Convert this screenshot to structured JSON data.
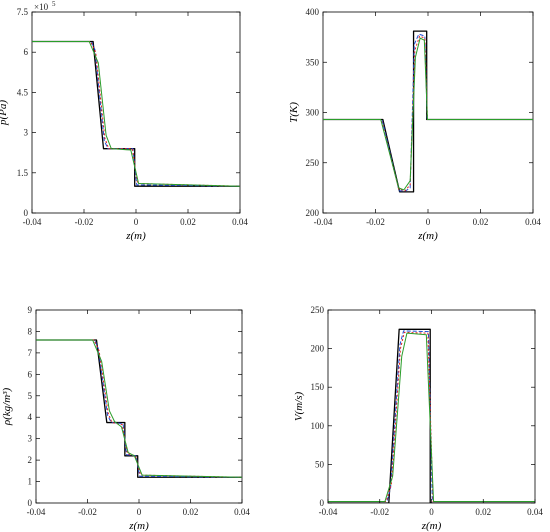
{
  "chart_data": [
    {
      "type": "line",
      "xlabel": "z(m)",
      "ylabel": "p(Pa)",
      "y_exponent": "×10",
      "y_exponent_power": "5",
      "xlim": [
        -0.04,
        0.04
      ],
      "ylim": [
        0,
        7.5
      ],
      "xticks": [
        -0.04,
        -0.02,
        0,
        0.02,
        0.04
      ],
      "xticklabels": [
        "-0.04",
        "-0.02",
        "0",
        "0.02",
        "0.04"
      ],
      "yticks": [
        0,
        1.5,
        3,
        4.5,
        6,
        7.5
      ],
      "yticklabels": [
        "0",
        "1.5",
        "3",
        "4.5",
        "6",
        "7.5"
      ],
      "series": [
        {
          "color": "#000000",
          "dash": "solid",
          "width": 1.3,
          "x": [
            -0.04,
            -0.0165,
            -0.0165,
            -0.0125,
            -0.0118,
            -0.0005,
            -0.0005,
            0.04
          ],
          "y": [
            6.4,
            6.4,
            6.4,
            2.4,
            2.4,
            2.4,
            1.0,
            1.0
          ]
        },
        {
          "color": "#1f4fd8",
          "dash": "4,2",
          "width": 1.0,
          "x": [
            -0.04,
            -0.0172,
            -0.0158,
            -0.0122,
            -0.0108,
            -0.0012,
            0.0003,
            0.04
          ],
          "y": [
            6.4,
            6.4,
            6.1,
            2.7,
            2.4,
            2.4,
            1.05,
            1.0
          ]
        },
        {
          "color": "#e02020",
          "dash": "2,2",
          "width": 1.0,
          "x": [
            -0.04,
            -0.0175,
            -0.0155,
            -0.012,
            -0.0105,
            -0.0014,
            0.0006,
            0.04
          ],
          "y": [
            6.4,
            6.4,
            6.0,
            2.8,
            2.4,
            2.4,
            1.1,
            1.0
          ]
        },
        {
          "color": "#2a9d2a",
          "dash": "solid",
          "width": 1.0,
          "x": [
            -0.04,
            -0.018,
            -0.0145,
            -0.0115,
            -0.0095,
            -0.002,
            0.001,
            0.04
          ],
          "y": [
            6.4,
            6.4,
            5.6,
            2.9,
            2.4,
            2.35,
            1.1,
            1.0
          ]
        }
      ]
    },
    {
      "type": "line",
      "xlabel": "z(m)",
      "ylabel": "T(K)",
      "xlim": [
        -0.04,
        0.04
      ],
      "ylim": [
        200,
        400
      ],
      "xticks": [
        -0.04,
        -0.02,
        0,
        0.02,
        0.04
      ],
      "xticklabels": [
        "-0.04",
        "-0.02",
        "0",
        "0.02",
        "0.04"
      ],
      "yticks": [
        200,
        250,
        300,
        350,
        400
      ],
      "yticklabels": [
        "200",
        "250",
        "300",
        "350",
        "400"
      ],
      "series": [
        {
          "color": "#000000",
          "dash": "solid",
          "width": 1.3,
          "x": [
            -0.04,
            -0.0172,
            -0.0108,
            -0.0085,
            -0.0085,
            -0.0055,
            -0.0055,
            -0.0005,
            -0.0005,
            0.04
          ],
          "y": [
            293,
            293,
            221,
            221,
            221,
            221,
            381,
            381,
            293,
            293
          ]
        },
        {
          "color": "#1f4fd8",
          "dash": "4,2",
          "width": 1.0,
          "x": [
            -0.04,
            -0.0175,
            -0.011,
            -0.0085,
            -0.0068,
            -0.0052,
            -0.0035,
            -0.0012,
            -0.0003,
            0.04
          ],
          "y": [
            293,
            293,
            222,
            222,
            225,
            368,
            378,
            376,
            293,
            293
          ]
        },
        {
          "color": "#e02020",
          "dash": "2,2",
          "width": 1.0,
          "x": [
            -0.04,
            -0.0178,
            -0.0112,
            -0.0088,
            -0.0068,
            -0.005,
            -0.0032,
            -0.0012,
            -0.0002,
            0.04
          ],
          "y": [
            293,
            293,
            224,
            222,
            228,
            362,
            376,
            374,
            293,
            293
          ]
        },
        {
          "color": "#2a9d2a",
          "dash": "solid",
          "width": 1.0,
          "x": [
            -0.04,
            -0.018,
            -0.0112,
            -0.0092,
            -0.0068,
            -0.0048,
            -0.003,
            -0.0014,
            -0.0002,
            0.04
          ],
          "y": [
            293,
            293,
            225,
            223,
            232,
            355,
            374,
            372,
            293,
            293
          ]
        }
      ]
    },
    {
      "type": "line",
      "xlabel": "z(m)",
      "ylabel": "ρ(kg/m³)",
      "xlim": [
        -0.04,
        0.04
      ],
      "ylim": [
        0,
        9
      ],
      "xticks": [
        -0.04,
        -0.02,
        0,
        0.02,
        0.04
      ],
      "xticklabels": [
        "-0.04",
        "-0.02",
        "0",
        "0.02",
        "0.04"
      ],
      "yticks": [
        0,
        1,
        2,
        3,
        4,
        5,
        6,
        7,
        8,
        9
      ],
      "yticklabels": [
        "0",
        "1",
        "2",
        "3",
        "4",
        "5",
        "6",
        "7",
        "8",
        "9"
      ],
      "series": [
        {
          "color": "#000000",
          "dash": "solid",
          "width": 1.3,
          "x": [
            -0.04,
            -0.0165,
            -0.0125,
            -0.0118,
            -0.0055,
            -0.0055,
            -0.0005,
            -0.0005,
            0.04
          ],
          "y": [
            7.6,
            7.6,
            3.75,
            3.75,
            3.75,
            2.2,
            2.2,
            1.2,
            1.2
          ]
        },
        {
          "color": "#1f4fd8",
          "dash": "4,2",
          "width": 1.0,
          "x": [
            -0.04,
            -0.0172,
            -0.0158,
            -0.0122,
            -0.0108,
            -0.0062,
            -0.0048,
            -0.0012,
            0.0003,
            0.04
          ],
          "y": [
            7.6,
            7.6,
            7.2,
            4.1,
            3.75,
            3.7,
            2.25,
            2.2,
            1.25,
            1.2
          ]
        },
        {
          "color": "#e02020",
          "dash": "2,2",
          "width": 1.0,
          "x": [
            -0.04,
            -0.0175,
            -0.0155,
            -0.012,
            -0.0105,
            -0.0065,
            -0.0045,
            -0.0014,
            0.0006,
            0.04
          ],
          "y": [
            7.6,
            7.6,
            7.1,
            4.2,
            3.75,
            3.65,
            2.3,
            2.2,
            1.3,
            1.2
          ]
        },
        {
          "color": "#2a9d2a",
          "dash": "solid",
          "width": 1.0,
          "x": [
            -0.04,
            -0.018,
            -0.0145,
            -0.0115,
            -0.0095,
            -0.0068,
            -0.0042,
            -0.0018,
            0.0012,
            0.04
          ],
          "y": [
            7.6,
            7.6,
            6.6,
            4.3,
            3.8,
            3.55,
            2.35,
            2.2,
            1.3,
            1.2
          ]
        }
      ]
    },
    {
      "type": "line",
      "xlabel": "z(m)",
      "ylabel": "V(m/s)",
      "xlim": [
        -0.04,
        0.04
      ],
      "ylim": [
        0,
        250
      ],
      "xticks": [
        -0.04,
        -0.02,
        0,
        0.02,
        0.04
      ],
      "xticklabels": [
        "-0.04",
        "-0.02",
        "0",
        "0.02",
        "0.04"
      ],
      "yticks": [
        0,
        50,
        100,
        150,
        200,
        250
      ],
      "yticklabels": [
        "0",
        "50",
        "100",
        "150",
        "200",
        "250"
      ],
      "series": [
        {
          "color": "#000000",
          "dash": "solid",
          "width": 1.3,
          "x": [
            -0.04,
            -0.0165,
            -0.0125,
            -0.0005,
            -0.0005,
            0.04
          ],
          "y": [
            0,
            0,
            225,
            225,
            0,
            0
          ]
        },
        {
          "color": "#1f4fd8",
          "dash": "4,2",
          "width": 1.0,
          "x": [
            -0.04,
            -0.0172,
            -0.0158,
            -0.0122,
            -0.0108,
            -0.0012,
            0.0003,
            0.04
          ],
          "y": [
            2,
            2,
            20,
            205,
            223,
            222,
            2,
            2
          ]
        },
        {
          "color": "#e02020",
          "dash": "2,2",
          "width": 1.0,
          "x": [
            -0.04,
            -0.0175,
            -0.0155,
            -0.012,
            -0.0105,
            -0.0014,
            0.0006,
            0.04
          ],
          "y": [
            2,
            2,
            25,
            200,
            221,
            220,
            2,
            2
          ]
        },
        {
          "color": "#2a9d2a",
          "dash": "solid",
          "width": 1.0,
          "x": [
            -0.04,
            -0.018,
            -0.015,
            -0.0115,
            -0.0095,
            -0.002,
            0.0008,
            0.04
          ],
          "y": [
            2,
            2,
            35,
            190,
            220,
            218,
            2,
            2
          ]
        }
      ]
    }
  ]
}
